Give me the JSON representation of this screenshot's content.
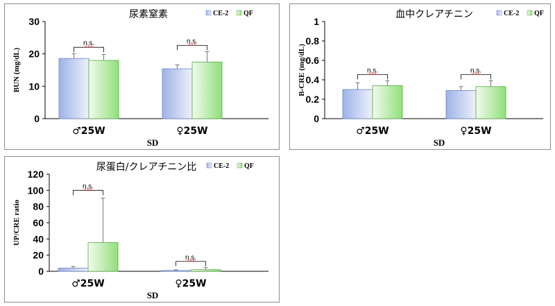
{
  "colors": {
    "series_a_dark": "#9db3e6",
    "series_a_light": "#eef1fb",
    "series_b_dark": "#90e07a",
    "series_b_light": "#f1fbec",
    "bracket": "#000000",
    "squiggle": "#e05050"
  },
  "chart_data": [
    {
      "type": "bar",
      "title": "尿素窒素",
      "ylabel": "BUN (mg/dL)",
      "xlabel": "SD",
      "categories": [
        "♂25W",
        "♀25W"
      ],
      "series": [
        {
          "name": "CE-2",
          "values": [
            18.6,
            15.4
          ],
          "errors": [
            1.5,
            1.2
          ]
        },
        {
          "name": "QF",
          "values": [
            18.0,
            17.5
          ],
          "errors": [
            1.8,
            3.2
          ]
        }
      ],
      "ylim": [
        0,
        30
      ],
      "yticks": [
        "0",
        "10",
        "20",
        "30"
      ],
      "annotations": [
        "n.s.",
        "n.s."
      ],
      "legend": "top-right",
      "grid": false
    },
    {
      "type": "bar",
      "title": "血中クレアチニン",
      "ylabel": "B-CRE (mg/dL)",
      "xlabel": "SD",
      "categories": [
        "♂25W",
        "♀25W"
      ],
      "series": [
        {
          "name": "CE-2",
          "values": [
            0.3,
            0.29
          ],
          "errors": [
            0.07,
            0.04
          ]
        },
        {
          "name": "QF",
          "values": [
            0.34,
            0.33
          ],
          "errors": [
            0.05,
            0.06
          ]
        }
      ],
      "ylim": [
        0,
        1
      ],
      "yticks": [
        "0",
        "0.2",
        "0.4",
        "0.6",
        "0.8",
        "1"
      ],
      "annotations": [
        "n.s.",
        "n.s."
      ],
      "legend": "top-right",
      "grid": false
    },
    {
      "type": "bar",
      "title": "尿蛋白/クレアチニン比",
      "ylabel": "UP/CRE ratio",
      "xlabel": "SD",
      "categories": [
        "♂25W",
        "♀25W"
      ],
      "series": [
        {
          "name": "CE-2",
          "values": [
            4.0,
            1.0
          ],
          "errors": [
            2.0,
            0.8
          ]
        },
        {
          "name": "QF",
          "values": [
            35.5,
            2.0
          ],
          "errors": [
            55.0,
            2.5
          ]
        }
      ],
      "ylim": [
        0,
        120
      ],
      "yticks": [
        "0",
        "20",
        "40",
        "60",
        "80",
        "100",
        "120"
      ],
      "annotations": [
        "n.s.",
        "n.s."
      ],
      "legend": "top-right",
      "grid": false
    }
  ]
}
